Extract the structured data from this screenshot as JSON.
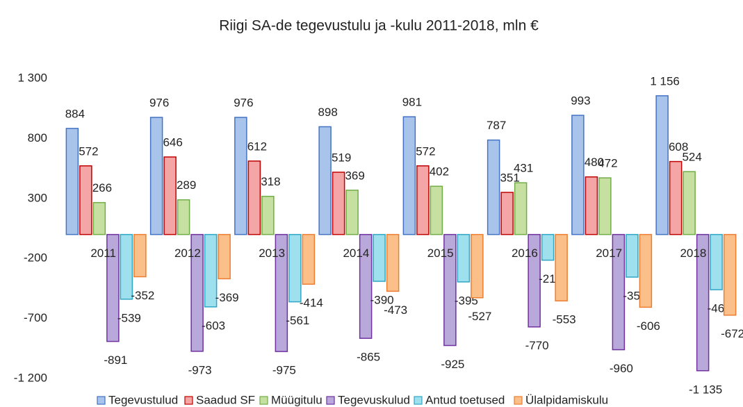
{
  "chart_data": {
    "type": "bar",
    "title": "Riigi SA-de tegevustulu ja -kulu 2011-2018, mln €",
    "categories": [
      "2011",
      "2012",
      "2013",
      "2014",
      "2015",
      "2016",
      "2017",
      "2018"
    ],
    "series": [
      {
        "name": "Tegevustulud",
        "color": "#a9c4eb",
        "values": [
          884,
          976,
          976,
          898,
          981,
          787,
          993,
          1156
        ],
        "value_labels": [
          "884",
          "976",
          "976",
          "898",
          "981",
          "787",
          "993",
          "1 156"
        ]
      },
      {
        "name": "Saadud SF",
        "color": "#f4a6a6",
        "values": [
          572,
          646,
          612,
          519,
          572,
          351,
          480,
          608
        ]
      },
      {
        "name": "Müügitulu",
        "color": "#c5e0a0",
        "values": [
          266,
          289,
          318,
          369,
          402,
          431,
          472,
          524
        ]
      },
      {
        "name": "Tegevuskulud",
        "color": "#b9a8da",
        "values": [
          -891,
          -973,
          -975,
          -865,
          -925,
          -770,
          -960,
          -1135
        ],
        "value_labels": [
          "-891",
          "-973",
          "-975",
          "-865",
          "-925",
          "-770",
          "-960",
          "-1 135"
        ]
      },
      {
        "name": "Antud toetused",
        "color": "#9fe0ee",
        "values": [
          -539,
          -603,
          -561,
          -390,
          -395,
          -214,
          -355,
          -460
        ]
      },
      {
        "name": "Ülalpidamiskulu",
        "color": "#fbc08a",
        "values": [
          -352,
          -369,
          -414,
          -473,
          -527,
          -553,
          -606,
          -672
        ]
      }
    ],
    "ylim": [
      -1200,
      1300
    ],
    "yticks": [
      {
        "value": -1200,
        "label": "-1 200"
      },
      -700,
      -200,
      300,
      800,
      {
        "value": 1300,
        "label": "1 300"
      }
    ]
  }
}
